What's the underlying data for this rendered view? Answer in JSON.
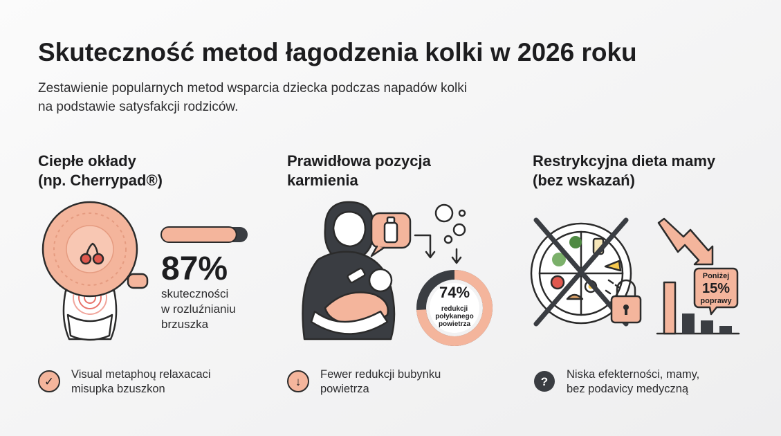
{
  "header": {
    "title": "Skuteczność metod łagodzenia kolki w 2026 roku",
    "subtitle": [
      "Zestawienie popularnych metod wsparcia dziecka podczas napadów kolki",
      "na podstawie satysfakcji rodziców."
    ]
  },
  "columns": [
    {
      "heading": [
        "Ciepłe okłady",
        "(np. Cherrypad®)"
      ],
      "stat": {
        "value": 87,
        "label": "87%"
      },
      "stat_text": [
        "skuteczności",
        "w rozluźnianiu",
        "brzuszka"
      ],
      "icon": "✓",
      "footer": [
        "Visual metaphoų relaxacaci",
        "misupka bzuszkon"
      ]
    },
    {
      "heading": [
        "Prawidłowa pozycja",
        "karmienia"
      ],
      "stat": {
        "value": 74,
        "label": "74%"
      },
      "stat_text": [
        "redukcji",
        "połykanego",
        "powietrza"
      ],
      "icon": "↓",
      "footer": [
        "Fewer redukcji bubynku",
        "powietrza"
      ]
    },
    {
      "heading": [
        "Restrykcyjna dieta mamy",
        "(bez wskazań)"
      ],
      "callout": [
        "Poniżej",
        "15%",
        "poprawy"
      ],
      "icon": "?",
      "footer": [
        "Niska efekterności, mamy,",
        "bez podavicy medyczną"
      ]
    }
  ]
}
